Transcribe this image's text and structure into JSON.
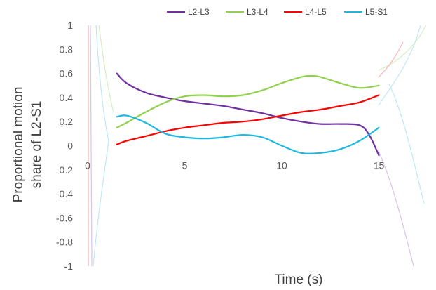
{
  "chart_data": {
    "type": "line",
    "xlabel": "Time (s)",
    "ylabel": "Proportional motion share of L2-S1",
    "xlim": [
      0,
      18
    ],
    "ylim": [
      -1,
      1
    ],
    "x_ticks": [
      0,
      5,
      10,
      15
    ],
    "y_ticks": [
      1,
      0.8,
      0.6,
      0.4,
      0.2,
      0,
      -0.2,
      -0.4,
      -0.6,
      -0.8,
      -1
    ],
    "y_tick_labels": [
      "1",
      "0.8",
      "0.6",
      "0.4",
      "0.2",
      "0",
      "-0.2",
      "-0.4",
      "-0.6",
      "-0.8",
      "-1"
    ],
    "x_tick_labels": [
      "0",
      "5",
      "10",
      "15"
    ],
    "legend_position": "top",
    "grid": false,
    "series": [
      {
        "name": "L2-L3",
        "color": "#7030A0",
        "x": [
          1.5,
          2,
          3,
          4,
          5,
          6,
          7,
          8,
          9,
          10,
          11,
          12,
          13,
          14,
          14.5,
          15
        ],
        "y": [
          0.6,
          0.52,
          0.44,
          0.4,
          0.37,
          0.35,
          0.33,
          0.3,
          0.27,
          0.23,
          0.2,
          0.18,
          0.18,
          0.17,
          0.09,
          -0.08
        ]
      },
      {
        "name": "L3-L4",
        "color": "#92D050",
        "x": [
          1.5,
          2,
          3,
          4,
          5,
          6,
          7,
          8,
          9,
          10,
          11,
          11.5,
          12,
          13,
          14,
          15
        ],
        "y": [
          0.15,
          0.19,
          0.28,
          0.36,
          0.41,
          0.42,
          0.41,
          0.42,
          0.46,
          0.52,
          0.57,
          0.58,
          0.57,
          0.52,
          0.48,
          0.5
        ]
      },
      {
        "name": "L4-L5",
        "color": "#FF0000",
        "x": [
          1.5,
          2,
          3,
          4,
          5,
          6,
          7,
          8,
          9,
          10,
          11,
          12,
          13,
          14,
          15
        ],
        "y": [
          0.01,
          0.04,
          0.08,
          0.12,
          0.15,
          0.17,
          0.19,
          0.2,
          0.22,
          0.25,
          0.28,
          0.3,
          0.33,
          0.36,
          0.42
        ]
      },
      {
        "name": "L5-S1",
        "color": "#1FB8DF",
        "x": [
          1.5,
          2,
          3,
          4,
          5,
          6,
          7,
          8,
          9,
          10,
          11,
          12,
          13,
          14,
          15
        ],
        "y": [
          0.24,
          0.25,
          0.19,
          0.1,
          0.07,
          0.06,
          0.07,
          0.09,
          0.07,
          0.0,
          -0.06,
          -0.06,
          -0.03,
          0.04,
          0.15
        ]
      }
    ]
  }
}
